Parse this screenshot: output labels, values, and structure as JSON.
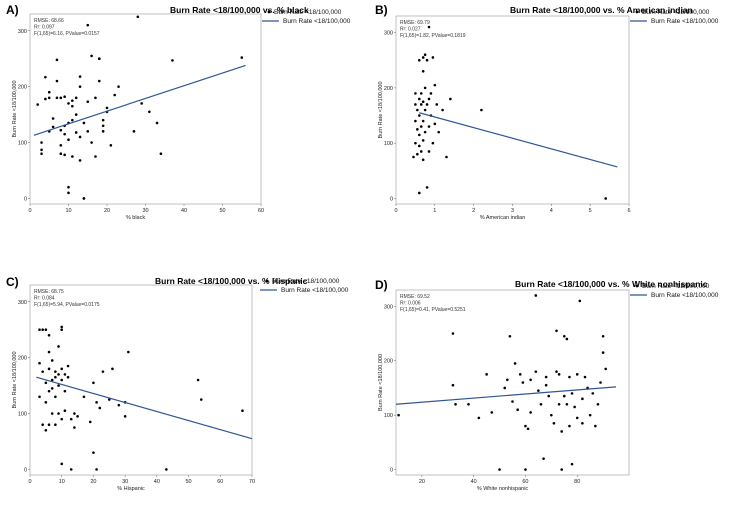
{
  "chart_data": [
    {
      "type": "scatter",
      "panel_label": "A)",
      "title": "Burn Rate <18/100,000 vs. % black",
      "xlabel": "% black",
      "ylabel": "Burn Rate <18/100,000",
      "xlim": [
        0,
        60
      ],
      "ylim": [
        -10,
        330
      ],
      "xticks": [
        0,
        10,
        20,
        30,
        40,
        50,
        60
      ],
      "yticks": [
        0,
        100,
        200,
        300
      ],
      "stats": [
        "RMSE: 68.66",
        "R²: 0.097",
        "F(1,65)=6.16, PValue=0.0157"
      ],
      "legend": [
        "Burn Rate <18/100,000",
        "Burn Rate <18/100,000"
      ],
      "fit": {
        "x": [
          1,
          56
        ],
        "y": [
          113,
          238
        ]
      },
      "points": [
        [
          2,
          168
        ],
        [
          3,
          100
        ],
        [
          3,
          87
        ],
        [
          3,
          80
        ],
        [
          4,
          217
        ],
        [
          4,
          178
        ],
        [
          5,
          190
        ],
        [
          5,
          180
        ],
        [
          5,
          120
        ],
        [
          6,
          143
        ],
        [
          6,
          128
        ],
        [
          7,
          248
        ],
        [
          7,
          210
        ],
        [
          7,
          180
        ],
        [
          8,
          180
        ],
        [
          8,
          95
        ],
        [
          8,
          80
        ],
        [
          8,
          122
        ],
        [
          9,
          115
        ],
        [
          9,
          130
        ],
        [
          9,
          182
        ],
        [
          9,
          78
        ],
        [
          10,
          170
        ],
        [
          10,
          105
        ],
        [
          10,
          20
        ],
        [
          10,
          10
        ],
        [
          10,
          135
        ],
        [
          11,
          175
        ],
        [
          11,
          165
        ],
        [
          11,
          140
        ],
        [
          11,
          75
        ],
        [
          12,
          150
        ],
        [
          12,
          118
        ],
        [
          12,
          180
        ],
        [
          13,
          200
        ],
        [
          13,
          218
        ],
        [
          13,
          110
        ],
        [
          13,
          68
        ],
        [
          14,
          0
        ],
        [
          14,
          0
        ],
        [
          14,
          135
        ],
        [
          15,
          310
        ],
        [
          15,
          173
        ],
        [
          15,
          120
        ],
        [
          16,
          255
        ],
        [
          16,
          100
        ],
        [
          17,
          75
        ],
        [
          17,
          180
        ],
        [
          18,
          250
        ],
        [
          18,
          250
        ],
        [
          18,
          210
        ],
        [
          19,
          140
        ],
        [
          19,
          120
        ],
        [
          19,
          130
        ],
        [
          20,
          155
        ],
        [
          20,
          162
        ],
        [
          21,
          95
        ],
        [
          22,
          185
        ],
        [
          23,
          200
        ],
        [
          27,
          120
        ],
        [
          28,
          325
        ],
        [
          29,
          170
        ],
        [
          31,
          155
        ],
        [
          33,
          135
        ],
        [
          34,
          80
        ],
        [
          37,
          247
        ],
        [
          55,
          252
        ]
      ]
    },
    {
      "type": "scatter",
      "panel_label": "B)",
      "title": "Burn Rate <18/100,000 vs. %  American indian",
      "xlabel": "% American indian",
      "ylabel": "Burn Rate <18/100,000",
      "xlim": [
        0,
        6
      ],
      "ylim": [
        -10,
        330
      ],
      "xticks": [
        0,
        1,
        2,
        3,
        4,
        5,
        6
      ],
      "yticks": [
        0,
        100,
        200,
        300
      ],
      "stats": [
        "RMSE: 69.79",
        "R²: 0.027",
        "F(1,65)=1.82, PValue=0.1819"
      ],
      "legend": [
        "Burn Rate <18/100,000",
        "Burn Rate <18/100,000"
      ],
      "fit": {
        "x": [
          0.6,
          5.7
        ],
        "y": [
          155,
          57
        ]
      },
      "points": [
        [
          0.45,
          75
        ],
        [
          0.5,
          190
        ],
        [
          0.5,
          170
        ],
        [
          0.5,
          140
        ],
        [
          0.5,
          100
        ],
        [
          0.55,
          80
        ],
        [
          0.55,
          160
        ],
        [
          0.55,
          125
        ],
        [
          0.6,
          250
        ],
        [
          0.6,
          180
        ],
        [
          0.6,
          150
        ],
        [
          0.6,
          115
        ],
        [
          0.6,
          95
        ],
        [
          0.6,
          10
        ],
        [
          0.65,
          190
        ],
        [
          0.65,
          170
        ],
        [
          0.65,
          130
        ],
        [
          0.65,
          85
        ],
        [
          0.7,
          255
        ],
        [
          0.7,
          230
        ],
        [
          0.7,
          175
        ],
        [
          0.7,
          140
        ],
        [
          0.7,
          105
        ],
        [
          0.7,
          70
        ],
        [
          0.75,
          260
        ],
        [
          0.75,
          200
        ],
        [
          0.75,
          160
        ],
        [
          0.75,
          120
        ],
        [
          0.8,
          250
        ],
        [
          0.8,
          170
        ],
        [
          0.8,
          20
        ],
        [
          0.85,
          310
        ],
        [
          0.85,
          180
        ],
        [
          0.85,
          130
        ],
        [
          0.85,
          85
        ],
        [
          0.9,
          190
        ],
        [
          0.9,
          150
        ],
        [
          0.95,
          255
        ],
        [
          0.95,
          100
        ],
        [
          1.0,
          205
        ],
        [
          1.0,
          135
        ],
        [
          1.05,
          170
        ],
        [
          1.1,
          120
        ],
        [
          1.2,
          160
        ],
        [
          1.3,
          75
        ],
        [
          1.4,
          180
        ],
        [
          2.2,
          160
        ],
        [
          5.4,
          0
        ]
      ]
    },
    {
      "type": "scatter",
      "panel_label": "C)",
      "title": "Burn Rate <18/100,000 vs. % Hispanic",
      "xlabel": "% Hispanic",
      "ylabel": "Burn Rate <18/100,000",
      "xlim": [
        0,
        70
      ],
      "ylim": [
        -10,
        330
      ],
      "xticks": [
        0,
        10,
        20,
        30,
        40,
        50,
        60,
        70
      ],
      "yticks": [
        0,
        100,
        200,
        300
      ],
      "stats": [
        "RMSE: 68.75",
        "R²: 0.084",
        "F(1,65)=5.94, PValue=0.0175"
      ],
      "legend": [
        "Burn Rate <18/100,000",
        "Burn Rate <18/100,000"
      ],
      "fit": {
        "x": [
          2,
          70
        ],
        "y": [
          165,
          55
        ]
      },
      "points": [
        [
          3,
          250
        ],
        [
          3,
          190
        ],
        [
          3,
          130
        ],
        [
          4,
          250
        ],
        [
          4,
          175
        ],
        [
          4,
          80
        ],
        [
          5,
          250
        ],
        [
          5,
          155
        ],
        [
          5,
          120
        ],
        [
          5,
          70
        ],
        [
          6,
          240
        ],
        [
          6,
          210
        ],
        [
          6,
          180
        ],
        [
          6,
          140
        ],
        [
          6,
          80
        ],
        [
          7,
          195
        ],
        [
          7,
          160
        ],
        [
          7,
          145
        ],
        [
          7,
          100
        ],
        [
          8,
          175
        ],
        [
          8,
          165
        ],
        [
          8,
          130
        ],
        [
          8,
          80
        ],
        [
          9,
          220
        ],
        [
          9,
          170
        ],
        [
          9,
          150
        ],
        [
          9,
          100
        ],
        [
          10,
          255
        ],
        [
          10,
          250
        ],
        [
          10,
          180
        ],
        [
          10,
          160
        ],
        [
          10,
          90
        ],
        [
          10,
          10
        ],
        [
          11,
          170
        ],
        [
          11,
          140
        ],
        [
          11,
          105
        ],
        [
          12,
          185
        ],
        [
          12,
          165
        ],
        [
          13,
          90
        ],
        [
          13,
          0
        ],
        [
          14,
          100
        ],
        [
          14,
          75
        ],
        [
          15,
          95
        ],
        [
          17,
          130
        ],
        [
          19,
          85
        ],
        [
          20,
          155
        ],
        [
          20,
          30
        ],
        [
          21,
          120
        ],
        [
          21,
          0
        ],
        [
          22,
          110
        ],
        [
          23,
          175
        ],
        [
          25,
          125
        ],
        [
          26,
          180
        ],
        [
          28,
          115
        ],
        [
          30,
          120
        ],
        [
          30,
          95
        ],
        [
          31,
          210
        ],
        [
          43,
          0
        ],
        [
          53,
          160
        ],
        [
          54,
          125
        ],
        [
          67,
          105
        ]
      ]
    },
    {
      "type": "scatter",
      "panel_label": "D)",
      "title": "Burn Rate <18/100,000 vs. % White nonhispanic",
      "xlabel": "% White nonhispanic",
      "ylabel": "Burn Rate <18/100,000",
      "xlim": [
        10,
        100
      ],
      "ylim": [
        -10,
        330
      ],
      "xticks": [
        20,
        40,
        60,
        80
      ],
      "yticks": [
        0,
        100,
        200,
        300
      ],
      "stats": [
        "RMSE: 69.52",
        "R²: 0.006",
        "F(1,65)=0.41, PValue=0.5251"
      ],
      "legend": [
        "Burn Rate <18/100,000",
        "Burn Rate <18/100,000"
      ],
      "fit": {
        "x": [
          10,
          95
        ],
        "y": [
          120,
          152
        ]
      },
      "points": [
        [
          11,
          100
        ],
        [
          32,
          155
        ],
        [
          32,
          250
        ],
        [
          33,
          120
        ],
        [
          38,
          120
        ],
        [
          42,
          95
        ],
        [
          45,
          175
        ],
        [
          47,
          105
        ],
        [
          50,
          0
        ],
        [
          52,
          150
        ],
        [
          53,
          165
        ],
        [
          54,
          245
        ],
        [
          55,
          125
        ],
        [
          56,
          195
        ],
        [
          57,
          110
        ],
        [
          58,
          175
        ],
        [
          59,
          160
        ],
        [
          60,
          80
        ],
        [
          60,
          0
        ],
        [
          61,
          75
        ],
        [
          62,
          165
        ],
        [
          62,
          105
        ],
        [
          64,
          320
        ],
        [
          64,
          180
        ],
        [
          65,
          145
        ],
        [
          66,
          120
        ],
        [
          67,
          20
        ],
        [
          68,
          170
        ],
        [
          68,
          155
        ],
        [
          69,
          135
        ],
        [
          70,
          100
        ],
        [
          71,
          85
        ],
        [
          72,
          255
        ],
        [
          72,
          180
        ],
        [
          73,
          175
        ],
        [
          73,
          120
        ],
        [
          74,
          70
        ],
        [
          74,
          0
        ],
        [
          75,
          245
        ],
        [
          75,
          135
        ],
        [
          76,
          120
        ],
        [
          76,
          240
        ],
        [
          77,
          170
        ],
        [
          77,
          80
        ],
        [
          78,
          140
        ],
        [
          78,
          10
        ],
        [
          79,
          115
        ],
        [
          80,
          95
        ],
        [
          80,
          175
        ],
        [
          81,
          310
        ],
        [
          82,
          85
        ],
        [
          82,
          130
        ],
        [
          83,
          170
        ],
        [
          84,
          150
        ],
        [
          85,
          100
        ],
        [
          86,
          140
        ],
        [
          87,
          80
        ],
        [
          88,
          120
        ],
        [
          89,
          160
        ],
        [
          90,
          245
        ],
        [
          90,
          215
        ],
        [
          91,
          185
        ]
      ]
    }
  ]
}
